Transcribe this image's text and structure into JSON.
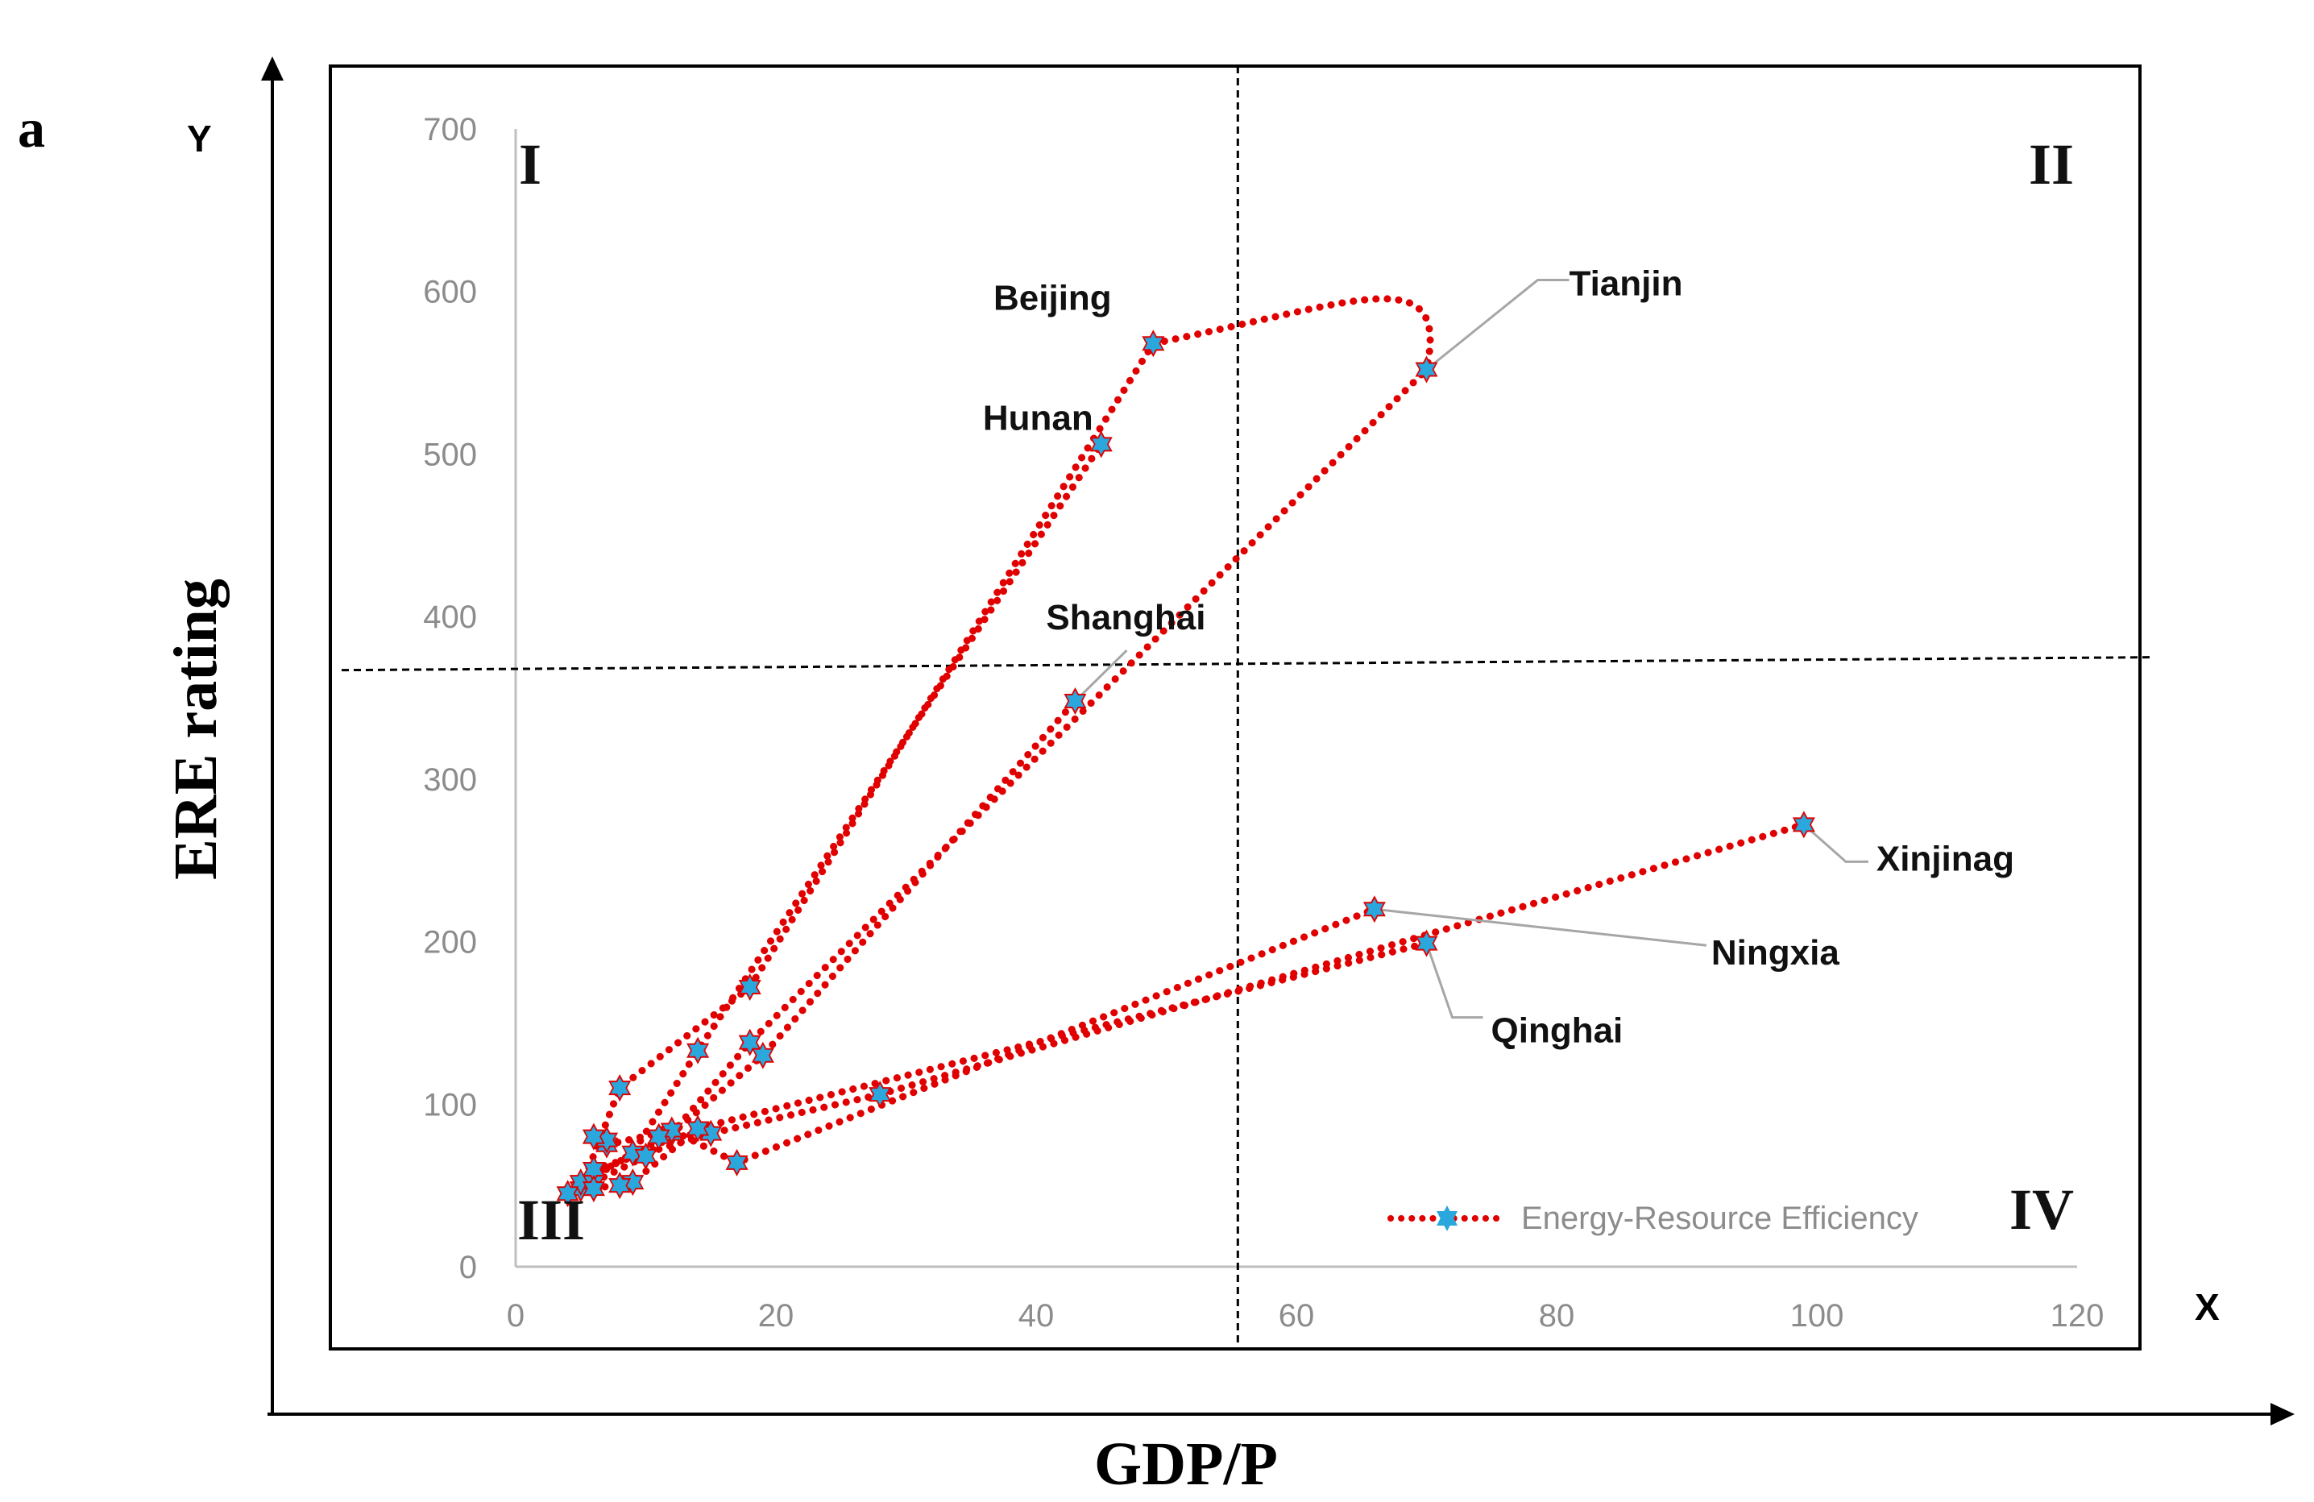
{
  "panel_label": "a",
  "outer_axes": {
    "y_letter": "Y",
    "x_letter": "X",
    "y_title": "ERE rating",
    "x_title": "GDP/P"
  },
  "quadrants": [
    "I",
    "II",
    "III",
    "IV"
  ],
  "colors": {
    "series": "#e00000",
    "marker": "#2aa7dc",
    "axis": "#000000",
    "gridline": "#bfbfbf",
    "tick": "#8c8c8c"
  },
  "chart_data": {
    "type": "scatter",
    "title": "",
    "xlabel": "GDP/P",
    "ylabel": "ERE rating",
    "xlim": [
      0,
      120
    ],
    "ylim": [
      0,
      700
    ],
    "xticks": [
      0,
      20,
      40,
      60,
      80,
      100,
      120
    ],
    "yticks": [
      0,
      100,
      200,
      300,
      400,
      500,
      600,
      700
    ],
    "grid": false,
    "legend": {
      "position": "bottom-right",
      "label": "Energy-Resource Efficiency"
    },
    "divider_lines": {
      "x": 55.5,
      "y": 370
    },
    "series": [
      {
        "name": "Beijing",
        "points": [
          [
            5,
            48
          ],
          [
            8,
            110
          ],
          [
            18,
            172
          ],
          [
            49,
            568
          ]
        ]
      },
      {
        "name": "Tianjin",
        "points": [
          [
            5,
            52
          ],
          [
            12,
            82
          ],
          [
            18,
            138
          ],
          [
            70,
            552
          ]
        ]
      },
      {
        "name": "Hunan",
        "points": [
          [
            4,
            45
          ],
          [
            9,
            70
          ],
          [
            14,
            133
          ],
          [
            45,
            506
          ]
        ]
      },
      {
        "name": "Shanghai",
        "points": [
          [
            6,
            52
          ],
          [
            10,
            68
          ],
          [
            19,
            130
          ],
          [
            43,
            348
          ]
        ]
      },
      {
        "name": "Xinjinag",
        "points": [
          [
            6,
            60
          ],
          [
            15,
            82
          ],
          [
            28,
            106
          ],
          [
            99,
            272
          ]
        ]
      },
      {
        "name": "Ningxia",
        "points": [
          [
            7,
            75
          ],
          [
            12,
            84
          ],
          [
            17,
            64
          ],
          [
            66,
            220
          ]
        ]
      },
      {
        "name": "Qinghai",
        "points": [
          [
            6,
            48
          ],
          [
            9,
            52
          ],
          [
            14,
            85
          ],
          [
            70,
            199
          ]
        ]
      }
    ],
    "extra_markers": [
      [
        7,
        78
      ],
      [
        8,
        50
      ],
      [
        6,
        80
      ],
      [
        11,
        80
      ]
    ],
    "annotations": [
      {
        "label": "Beijing",
        "x": 49,
        "y": 568
      },
      {
        "label": "Tianjin",
        "x": 70,
        "y": 552
      },
      {
        "label": "Hunan",
        "x": 45,
        "y": 506
      },
      {
        "label": "Shanghai",
        "x": 43,
        "y": 348
      },
      {
        "label": "Xinjinag",
        "x": 99,
        "y": 272
      },
      {
        "label": "Ningxia",
        "x": 66,
        "y": 220
      },
      {
        "label": "Qinghai",
        "x": 70,
        "y": 199
      }
    ]
  }
}
